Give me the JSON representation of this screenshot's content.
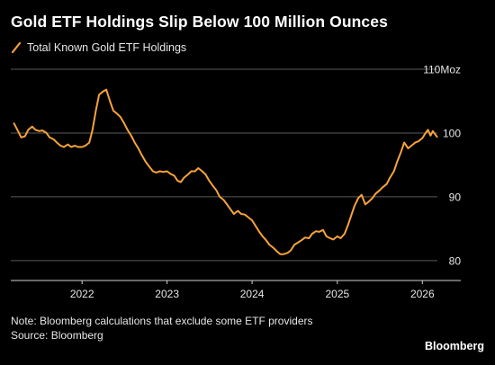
{
  "colors": {
    "background": "#000000",
    "line": "#f7a33c",
    "grid": "#5a5a5a",
    "axis_text": "#e6e6e6"
  },
  "header": {
    "title": "Gold ETF Holdings Slip Below 100 Million Ounces"
  },
  "footer": {
    "note": "Note: Bloomberg calculations that exclude some ETF providers",
    "source": "Source: Bloomberg",
    "brand": "Bloomberg"
  },
  "chart_data": {
    "type": "line",
    "title": "Gold ETF Holdings Slip Below 100 Million Ounces",
    "xlabel": "",
    "ylabel": "",
    "ylim": [
      78,
      110
    ],
    "xlim": [
      "2021-03-01",
      "2026-06-15"
    ],
    "grid": true,
    "legend_position": "top-left",
    "y_ticks": [
      {
        "value": 110,
        "label": "110Moz"
      },
      {
        "value": 100,
        "label": "100"
      },
      {
        "value": 90,
        "label": "90"
      },
      {
        "value": 80,
        "label": "80"
      }
    ],
    "x_ticks": [
      {
        "date": "2022-01-01",
        "label": "2022"
      },
      {
        "date": "2023-01-01",
        "label": "2023"
      },
      {
        "date": "2024-01-01",
        "label": "2024"
      },
      {
        "date": "2025-01-01",
        "label": "2025"
      },
      {
        "date": "2026-01-01",
        "label": "2026"
      }
    ],
    "series": [
      {
        "name": "Total Known Gold ETF Holdings",
        "color": "#f7a33c",
        "points": [
          [
            "2021-03-15",
            101.5
          ],
          [
            "2021-04-01",
            100.3
          ],
          [
            "2021-04-15",
            99.3
          ],
          [
            "2021-05-01",
            99.5
          ],
          [
            "2021-05-15",
            100.5
          ],
          [
            "2021-06-01",
            101.0
          ],
          [
            "2021-06-15",
            100.5
          ],
          [
            "2021-07-01",
            100.3
          ],
          [
            "2021-07-15",
            100.4
          ],
          [
            "2021-08-01",
            100.0
          ],
          [
            "2021-08-15",
            99.3
          ],
          [
            "2021-09-01",
            99.0
          ],
          [
            "2021-09-15",
            98.5
          ],
          [
            "2021-10-01",
            98.0
          ],
          [
            "2021-10-15",
            97.8
          ],
          [
            "2021-11-01",
            98.2
          ],
          [
            "2021-11-15",
            97.8
          ],
          [
            "2021-12-01",
            98.0
          ],
          [
            "2021-12-15",
            97.8
          ],
          [
            "2022-01-01",
            97.8
          ],
          [
            "2022-01-15",
            98.0
          ],
          [
            "2022-02-01",
            98.5
          ],
          [
            "2022-02-15",
            100.5
          ],
          [
            "2022-03-01",
            103.5
          ],
          [
            "2022-03-15",
            106.0
          ],
          [
            "2022-04-01",
            106.5
          ],
          [
            "2022-04-15",
            106.8
          ],
          [
            "2022-05-01",
            105.0
          ],
          [
            "2022-05-15",
            103.5
          ],
          [
            "2022-06-01",
            103.0
          ],
          [
            "2022-06-15",
            102.5
          ],
          [
            "2022-07-01",
            101.5
          ],
          [
            "2022-07-15",
            100.5
          ],
          [
            "2022-08-01",
            99.5
          ],
          [
            "2022-08-15",
            98.5
          ],
          [
            "2022-09-01",
            97.5
          ],
          [
            "2022-09-15",
            96.5
          ],
          [
            "2022-10-01",
            95.5
          ],
          [
            "2022-10-15",
            94.8
          ],
          [
            "2022-11-01",
            94.0
          ],
          [
            "2022-11-15",
            93.8
          ],
          [
            "2022-12-01",
            94.0
          ],
          [
            "2022-12-15",
            93.9
          ],
          [
            "2023-01-01",
            94.0
          ],
          [
            "2023-01-15",
            93.6
          ],
          [
            "2023-02-01",
            93.3
          ],
          [
            "2023-02-15",
            92.5
          ],
          [
            "2023-03-01",
            92.3
          ],
          [
            "2023-03-15",
            93.0
          ],
          [
            "2023-04-01",
            93.5
          ],
          [
            "2023-04-15",
            94.0
          ],
          [
            "2023-05-01",
            94.0
          ],
          [
            "2023-05-15",
            94.5
          ],
          [
            "2023-06-01",
            94.0
          ],
          [
            "2023-06-15",
            93.5
          ],
          [
            "2023-07-01",
            92.5
          ],
          [
            "2023-07-15",
            91.8
          ],
          [
            "2023-08-01",
            91.0
          ],
          [
            "2023-08-15",
            90.0
          ],
          [
            "2023-09-01",
            89.5
          ],
          [
            "2023-09-15",
            88.8
          ],
          [
            "2023-10-01",
            88.0
          ],
          [
            "2023-10-15",
            87.3
          ],
          [
            "2023-11-01",
            87.8
          ],
          [
            "2023-11-15",
            87.3
          ],
          [
            "2023-12-01",
            87.2
          ],
          [
            "2023-12-15",
            86.8
          ],
          [
            "2024-01-01",
            86.3
          ],
          [
            "2024-01-15",
            85.5
          ],
          [
            "2024-02-01",
            84.5
          ],
          [
            "2024-02-15",
            83.8
          ],
          [
            "2024-03-01",
            83.2
          ],
          [
            "2024-03-15",
            82.5
          ],
          [
            "2024-04-01",
            82.0
          ],
          [
            "2024-04-15",
            81.5
          ],
          [
            "2024-05-01",
            81.0
          ],
          [
            "2024-05-15",
            81.0
          ],
          [
            "2024-06-01",
            81.2
          ],
          [
            "2024-06-15",
            81.6
          ],
          [
            "2024-07-01",
            82.5
          ],
          [
            "2024-07-15",
            82.8
          ],
          [
            "2024-08-01",
            83.2
          ],
          [
            "2024-08-15",
            83.6
          ],
          [
            "2024-09-01",
            83.5
          ],
          [
            "2024-09-15",
            84.2
          ],
          [
            "2024-10-01",
            84.6
          ],
          [
            "2024-10-15",
            84.5
          ],
          [
            "2024-11-01",
            84.8
          ],
          [
            "2024-11-15",
            83.8
          ],
          [
            "2024-12-01",
            83.5
          ],
          [
            "2024-12-15",
            83.3
          ],
          [
            "2025-01-01",
            83.8
          ],
          [
            "2025-01-15",
            83.5
          ],
          [
            "2025-02-01",
            84.2
          ],
          [
            "2025-02-15",
            85.5
          ],
          [
            "2025-03-01",
            87.0
          ],
          [
            "2025-03-15",
            88.5
          ],
          [
            "2025-04-01",
            89.8
          ],
          [
            "2025-04-15",
            90.3
          ],
          [
            "2025-05-01",
            88.8
          ],
          [
            "2025-05-15",
            89.2
          ],
          [
            "2025-06-01",
            89.8
          ],
          [
            "2025-06-15",
            90.5
          ],
          [
            "2025-07-01",
            91.0
          ],
          [
            "2025-07-15",
            91.5
          ],
          [
            "2025-08-01",
            92.0
          ],
          [
            "2025-08-15",
            93.0
          ],
          [
            "2025-09-01",
            94.0
          ],
          [
            "2025-09-15",
            95.5
          ],
          [
            "2025-10-01",
            97.0
          ],
          [
            "2025-10-15",
            98.5
          ],
          [
            "2025-11-01",
            97.6
          ],
          [
            "2025-11-15",
            98.0
          ],
          [
            "2025-12-01",
            98.5
          ],
          [
            "2025-12-15",
            98.7
          ],
          [
            "2026-01-01",
            99.2
          ],
          [
            "2026-01-15",
            100.0
          ],
          [
            "2026-01-25",
            100.5
          ],
          [
            "2026-02-05",
            99.6
          ],
          [
            "2026-02-15",
            100.3
          ],
          [
            "2026-02-25",
            99.8
          ],
          [
            "2026-03-05",
            99.4
          ]
        ]
      }
    ]
  }
}
